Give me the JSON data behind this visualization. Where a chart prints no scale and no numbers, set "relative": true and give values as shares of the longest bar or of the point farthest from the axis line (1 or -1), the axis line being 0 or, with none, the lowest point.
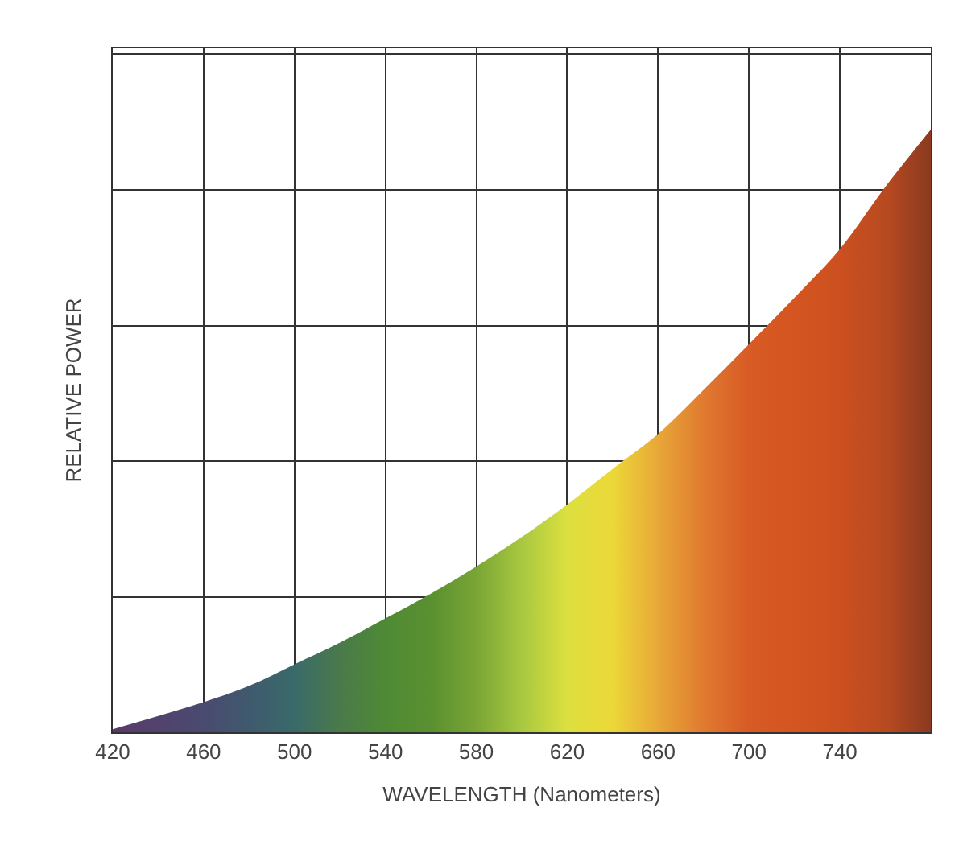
{
  "chart_data": {
    "type": "area",
    "relative": true,
    "xlabel": "WAVELENGTH (Nanometers)",
    "ylabel": "RELATIVE POWER",
    "x": [
      420,
      460,
      480,
      500,
      520,
      540,
      560,
      580,
      600,
      620,
      640,
      660,
      680,
      700,
      720,
      740,
      760,
      780
    ],
    "values": [
      0.005,
      0.05,
      0.077,
      0.113,
      0.149,
      0.189,
      0.23,
      0.275,
      0.324,
      0.378,
      0.437,
      0.495,
      0.568,
      0.644,
      0.721,
      0.802,
      0.905,
      1
    ],
    "colors": [
      "#5a3a6a",
      "#4a4a70",
      "#3f5a6e",
      "#3a6a6a",
      "#4a7a4a",
      "#4e8a35",
      "#5a9030",
      "#7aa535",
      "#a8c840",
      "#dce040",
      "#ecd838",
      "#e8a838",
      "#e07a30",
      "#d85a25",
      "#d45520",
      "#cc5020",
      "#b84a20",
      "#8a3a20"
    ],
    "xlim": [
      420,
      780
    ],
    "xticks": [
      420,
      460,
      500,
      540,
      580,
      620,
      660,
      700,
      740
    ],
    "grid": true
  }
}
